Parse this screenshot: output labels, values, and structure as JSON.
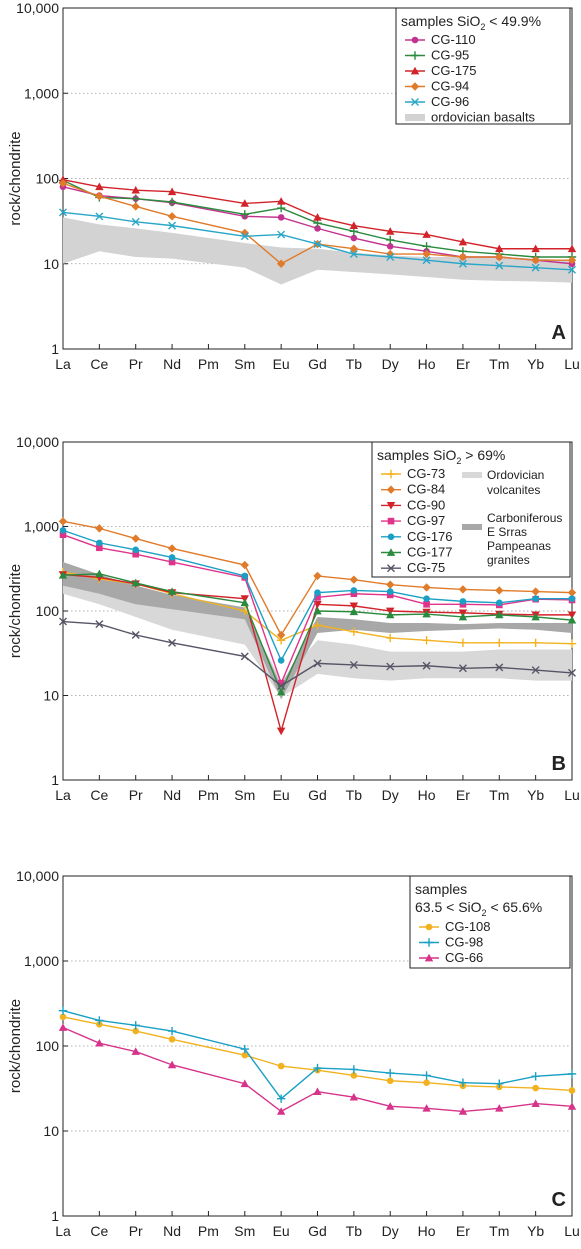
{
  "chart_data": [
    {
      "type": "line",
      "panel_label": "A",
      "ylabel": "rock/chondrite",
      "yscale": "log",
      "ylim": [
        1,
        10000
      ],
      "yticks": [
        "1",
        "10",
        "100",
        "1,000",
        "10,000"
      ],
      "categories": [
        "La",
        "Ce",
        "Pr",
        "Nd",
        "Pm",
        "Sm",
        "Eu",
        "Gd",
        "Tb",
        "Dy",
        "Ho",
        "Er",
        "Tm",
        "Yb",
        "Lu"
      ],
      "legend_title": "samples SiO₂ < 49.9%",
      "legend_position": "top-right",
      "series": [
        {
          "name": "CG-110",
          "color": "#c2338f",
          "marker": "circle",
          "values": [
            80,
            63,
            58,
            52,
            null,
            36,
            35,
            26,
            20,
            16,
            14,
            12,
            12,
            11,
            10
          ]
        },
        {
          "name": "CG-95",
          "color": "#2a8a3e",
          "marker": "plus",
          "values": [
            95,
            60,
            58,
            53,
            null,
            38,
            45,
            30,
            24,
            19,
            16,
            14,
            13,
            12,
            12
          ]
        },
        {
          "name": "CG-175",
          "color": "#d2232a",
          "marker": "triangle-up",
          "values": [
            97,
            80,
            73,
            70,
            null,
            51,
            54,
            35,
            28,
            24,
            22,
            18,
            15,
            15,
            15
          ]
        },
        {
          "name": "CG-94",
          "color": "#e07b2a",
          "marker": "diamond",
          "values": [
            88,
            62,
            47,
            36,
            null,
            23,
            10,
            17,
            15,
            13,
            13,
            12,
            12,
            11,
            11
          ]
        },
        {
          "name": "CG-96",
          "color": "#2aa6c8",
          "marker": "x",
          "values": [
            40,
            36,
            31,
            28,
            null,
            21,
            22,
            17,
            13,
            12,
            11,
            10,
            9.5,
            9,
            8.5
          ]
        }
      ],
      "bands": [
        {
          "name": "ordovician basalts",
          "color": "#d3d3d3",
          "lower": [
            10,
            14,
            12,
            11.5,
            null,
            9,
            5.7,
            8.5,
            8,
            7.5,
            7,
            6.5,
            6.3,
            6.2,
            6
          ],
          "upper": [
            35,
            29,
            26,
            23,
            null,
            17.5,
            15.5,
            15,
            13.5,
            12.5,
            12,
            12,
            12,
            11.5,
            11
          ]
        }
      ]
    },
    {
      "type": "line",
      "panel_label": "B",
      "ylabel": "rock/chondrite",
      "yscale": "log",
      "ylim": [
        1,
        10000
      ],
      "yticks": [
        "1",
        "10",
        "100",
        "1,000",
        "10,000"
      ],
      "categories": [
        "La",
        "Ce",
        "Pr",
        "Nd",
        "Pm",
        "Sm",
        "Eu",
        "Gd",
        "Tb",
        "Dy",
        "Ho",
        "Er",
        "Tm",
        "Yb",
        "Lu"
      ],
      "legend_title": "samples SiO₂ > 69%",
      "legend_position": "top-right",
      "series": [
        {
          "name": "CG-73",
          "color": "#f2b21f",
          "marker": "plus",
          "values": [
            290,
            240,
            210,
            160,
            null,
            100,
            45,
            68,
            57,
            48,
            45,
            42,
            42,
            42,
            41
          ]
        },
        {
          "name": "CG-84",
          "color": "#e07b2a",
          "marker": "diamond",
          "values": [
            1150,
            950,
            720,
            550,
            null,
            350,
            52,
            260,
            235,
            205,
            190,
            180,
            175,
            170,
            165
          ]
        },
        {
          "name": "CG-90",
          "color": "#d2232a",
          "marker": "triangle-down",
          "values": [
            270,
            250,
            210,
            165,
            null,
            140,
            3.8,
            120,
            115,
            100,
            97,
            95,
            92,
            90,
            90
          ]
        },
        {
          "name": "CG-97",
          "color": "#e0338a",
          "marker": "square",
          "values": [
            800,
            560,
            470,
            380,
            null,
            250,
            14,
            145,
            160,
            155,
            120,
            120,
            118,
            138,
            135
          ]
        },
        {
          "name": "CG-176",
          "color": "#1aa0c4",
          "marker": "circle",
          "values": [
            900,
            640,
            530,
            430,
            null,
            260,
            26,
            165,
            175,
            170,
            140,
            130,
            125,
            140,
            140
          ]
        },
        {
          "name": "CG-177",
          "color": "#2a8a3e",
          "marker": "triangle-up",
          "values": [
            265,
            275,
            215,
            170,
            null,
            125,
            11,
            100,
            98,
            90,
            92,
            85,
            90,
            85,
            78
          ]
        },
        {
          "name": "CG-75",
          "color": "#555566",
          "marker": "x",
          "values": [
            75,
            70,
            52,
            42,
            null,
            29,
            13,
            24,
            23,
            22,
            22.5,
            21,
            21.5,
            20,
            18.5
          ]
        }
      ],
      "bands": [
        {
          "name": "Ordovician volcanites",
          "color": "#d8d8d8",
          "lower": [
            160,
            120,
            85,
            60,
            null,
            40,
            9.5,
            18,
            16,
            15,
            16,
            16,
            16,
            15,
            15
          ],
          "upper": [
            300,
            230,
            175,
            140,
            null,
            100,
            15,
            45,
            40,
            33,
            33,
            33,
            35,
            35,
            35
          ]
        },
        {
          "name": "Carboniferous E Srras Pampeanas granites",
          "color": "#a8a8a8",
          "lower": [
            200,
            160,
            120,
            105,
            null,
            80,
            9,
            55,
            60,
            55,
            58,
            60,
            62,
            60,
            55
          ],
          "upper": [
            380,
            270,
            200,
            155,
            null,
            110,
            13,
            85,
            80,
            72,
            72,
            70,
            72,
            72,
            72
          ]
        }
      ]
    },
    {
      "type": "line",
      "panel_label": "C",
      "ylabel": "rock/chondrite",
      "yscale": "log",
      "ylim": [
        1,
        10000
      ],
      "yticks": [
        "1",
        "10",
        "100",
        "1,000",
        "10,000"
      ],
      "categories": [
        "La",
        "Ce",
        "Pr",
        "Nd",
        "Pm",
        "Sm",
        "Eu",
        "Gd",
        "Tb",
        "Dy",
        "Ho",
        "Er",
        "Tm",
        "Yb",
        "Lu"
      ],
      "legend_title": "samples",
      "legend_subtitle": "63.5 < SiO₂ < 65.6%",
      "legend_position": "top-right",
      "series": [
        {
          "name": "CG-108",
          "color": "#f2b21f",
          "marker": "circle",
          "values": [
            220,
            180,
            150,
            120,
            null,
            78,
            58,
            52,
            45,
            39,
            37,
            34,
            33,
            32,
            30
          ]
        },
        {
          "name": "CG-98",
          "color": "#1aa0c4",
          "marker": "plus",
          "values": [
            260,
            200,
            175,
            150,
            null,
            92,
            24,
            55,
            53,
            48,
            45,
            37,
            36,
            44,
            47
          ]
        },
        {
          "name": "CG-66",
          "color": "#d6338a",
          "marker": "triangle-up",
          "values": [
            165,
            108,
            86,
            60,
            null,
            36,
            17,
            29,
            25,
            19.5,
            18.5,
            17,
            18.5,
            21,
            19.5
          ]
        }
      ],
      "bands": []
    }
  ]
}
